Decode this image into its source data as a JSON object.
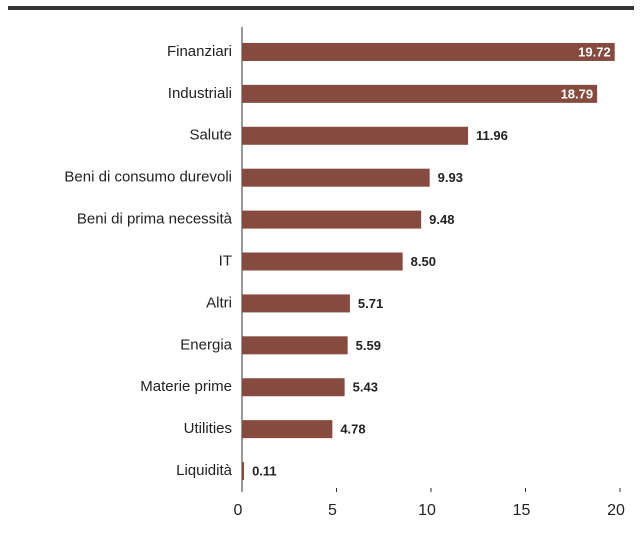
{
  "chart_data": {
    "type": "barh",
    "categories": [
      "Finanziari",
      "Industriali",
      "Salute",
      "Beni di consumo durevoli",
      "Beni di prima necessità",
      "IT",
      "Altri",
      "Energia",
      "Materie prime",
      "Utilities",
      "Liquidità"
    ],
    "values": [
      19.72,
      18.79,
      11.96,
      9.93,
      9.48,
      8.5,
      5.71,
      5.59,
      5.43,
      4.78,
      0.11
    ],
    "value_labels": [
      "19.72",
      "18.79",
      "11.96",
      "9.93",
      "9.48",
      "8.50",
      "5.71",
      "5.59",
      "5.43",
      "4.78",
      "0.11"
    ],
    "color": "#864a3e",
    "xlim": [
      0,
      20
    ],
    "xticks": [
      0,
      5,
      10,
      15,
      20
    ]
  }
}
